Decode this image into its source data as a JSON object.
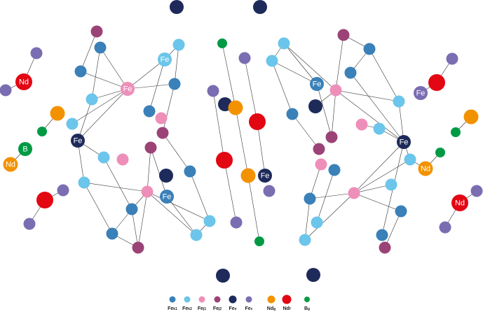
{
  "colors": {
    "Fe_k1": "#3a80b9",
    "Fe_k2": "#6cc5ea",
    "Fe_j1": "#ee8fba",
    "Fe_j2": "#9b4377",
    "Fe_e": "#1d2a5a",
    "Fe_c": "#7b6db2",
    "Nd_g": "#f39200",
    "Nd_f": "#e30613",
    "B_g": "#009a44",
    "bond": "#333333"
  },
  "atom_labels": {
    "Fe": "Fe",
    "Nd": "Nd",
    "B": "B"
  },
  "legend": [
    {
      "key": "Fe_k1",
      "element": "Fe",
      "site": "k1"
    },
    {
      "key": "Fe_k2",
      "element": "Fe",
      "site": "k2"
    },
    {
      "key": "Fe_j1",
      "element": "Fe",
      "site": "j1"
    },
    {
      "key": "Fe_j2",
      "element": "Fe",
      "site": "j2"
    },
    {
      "key": "Fe_e",
      "element": "Fe",
      "site": "e"
    },
    {
      "key": "Fe_c",
      "element": "Fe",
      "site": "c"
    },
    {
      "key": "Nd_g",
      "element": "Nd",
      "site": "g"
    },
    {
      "key": "Nd_f",
      "element": "Nd",
      "site": "f"
    },
    {
      "key": "B_g",
      "element": "B",
      "site": "g"
    }
  ]
}
